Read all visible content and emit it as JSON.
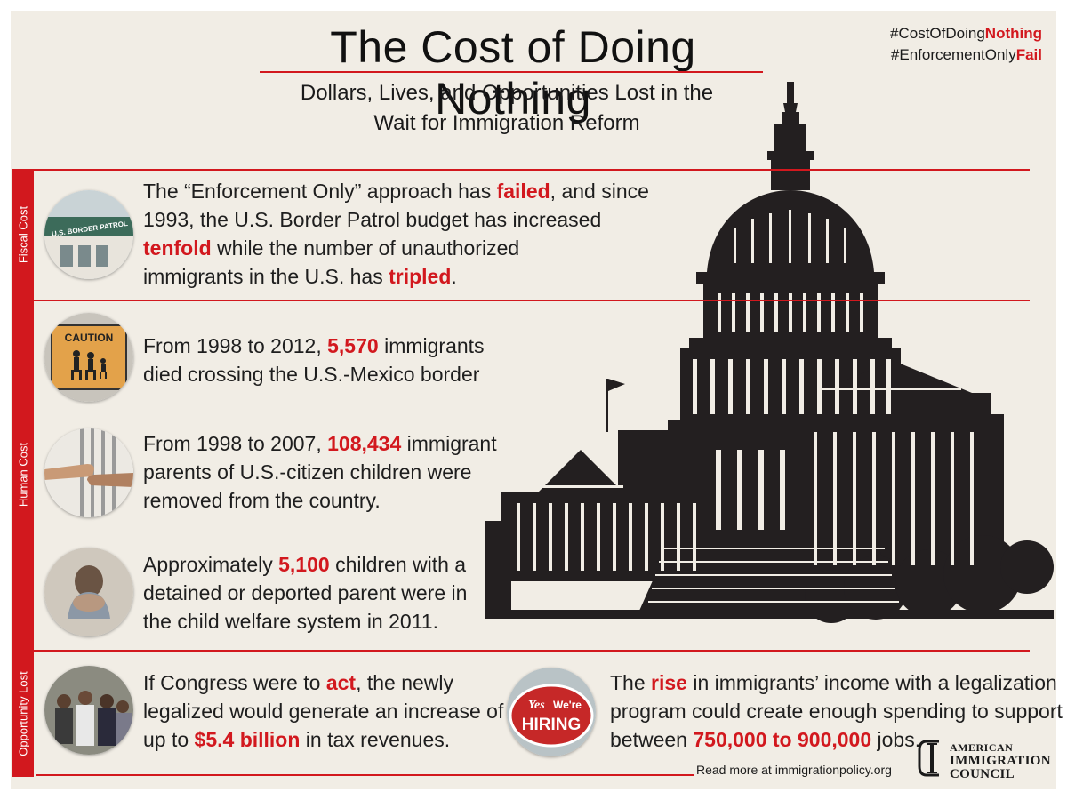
{
  "title": "The Cost of Doing Nothing",
  "subtitle_line1": "Dollars, Lives, and Opportunities Lost in the",
  "subtitle_line2": "Wait for Immigration Reform",
  "hashtags": [
    {
      "prefix": "#CostOfDoing",
      "highlight": "Nothing"
    },
    {
      "prefix": "#EnforcementOnly",
      "highlight": "Fail"
    }
  ],
  "sections": {
    "fiscal": "Fiscal Cost",
    "human": "Human Cost",
    "opportunity": "Opportunity Lost"
  },
  "thumbs": {
    "border_patrol_sign": "U.S. BORDER PATROL",
    "caution_sign": "CAUTION",
    "yes": "Yes",
    "were": "We're",
    "hiring": "HIRING"
  },
  "stats": {
    "fiscal": {
      "l1a": "The “Enforcement Only” approach has ",
      "l1b": "failed",
      "l1c": ", and since",
      "l2": "1993, the U.S. Border Patrol budget has increased",
      "l3a": "tenfold",
      "l3b": " while the number of unauthorized",
      "l4a": "immigrants in the U.S. has ",
      "l4b": "tripled",
      "l4c": "."
    },
    "deaths": {
      "l1a": "From 1998 to 2012, ",
      "l1b": "5,570",
      "l1c": " immigrants",
      "l2": "died crossing the U.S.-Mexico border"
    },
    "parents": {
      "l1a": "From 1998 to 2007, ",
      "l1b": "108,434",
      "l1c": " immigrant",
      "l2": "parents of U.S.-citizen children were",
      "l3": "removed from the country."
    },
    "children": {
      "l1a": "Approximately ",
      "l1b": "5,100",
      "l1c": " children with a",
      "l2": "detained or deported parent were in",
      "l3": "the child welfare system in 2011."
    },
    "tax": {
      "l1a": "If Congress were to ",
      "l1b": "act",
      "l1c": ", the newly",
      "l2": "legalized would generate an increase of",
      "l3a": "up to ",
      "l3b": "$5.4 billion",
      "l3c": " in tax revenues."
    },
    "jobs": {
      "l1a": "The ",
      "l1b": "rise",
      "l1c": " in immigrants’ income with a legalization",
      "l2": "program could create enough spending to support",
      "l3a": "between ",
      "l3b": "750,000 to 900,000",
      "l3c": " jobs."
    }
  },
  "footer": {
    "read_more": "Read more at immigrationpolicy.org",
    "org_line1": "AMERICAN",
    "org_line2": "IMMIGRATION",
    "org_line3": "COUNCIL"
  },
  "colors": {
    "accent": "#d2181e",
    "background": "#f1ede5",
    "text": "#1e1e1e"
  }
}
